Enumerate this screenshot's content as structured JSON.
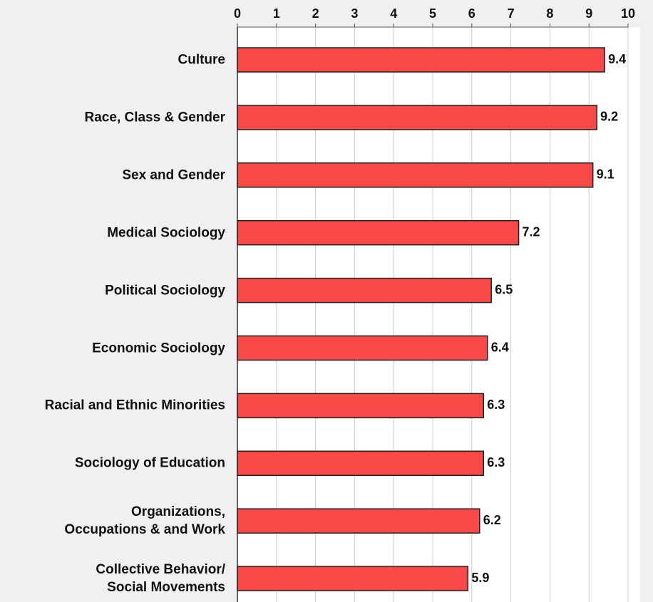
{
  "chart_data": {
    "type": "barh",
    "categories": [
      "Culture",
      "Race, Class & Gender",
      "Sex and Gender",
      "Medical Sociology",
      "Political Sociology",
      "Economic Sociology",
      "Racial and Ethnic Minorities",
      "Sociology of Education",
      "Organizations,\nOccupations & and Work",
      "Collective Behavior/\nSocial Movements"
    ],
    "values": [
      9.4,
      9.2,
      9.1,
      7.2,
      6.5,
      6.4,
      6.3,
      6.3,
      6.2,
      5.9
    ],
    "color": "#f84848",
    "xlim": [
      0,
      10
    ],
    "xticks": [
      0,
      1,
      2,
      3,
      4,
      5,
      6,
      7,
      8,
      9,
      10
    ],
    "grid": true
  }
}
